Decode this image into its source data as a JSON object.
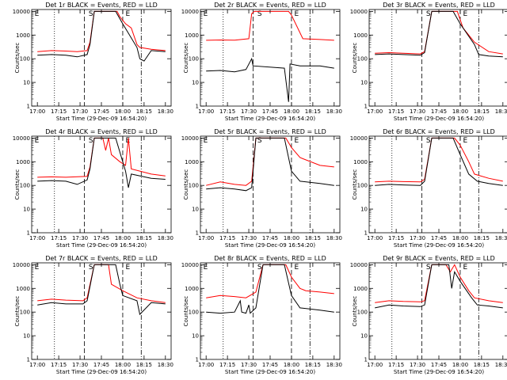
{
  "chart_data": {
    "type": "line",
    "x_tick_labels": [
      "17:00",
      "17:15",
      "17:30",
      "17:45",
      "18:00",
      "18:15",
      "18:30"
    ],
    "y_tick_labels": [
      "1",
      "10",
      "100",
      "1000",
      "10000"
    ],
    "y_scale": "log",
    "ylim": [
      1,
      12000
    ],
    "xlabel": "Start Time (29-Dec-09 16:54:20)",
    "ylabel": "Counts/sec",
    "series_colors": {
      "events": "#000000",
      "lld": "#ff0000"
    },
    "panels": [
      {
        "title": "Det 1r BLACK = Events, RED = LLD",
        "markers": [
          "E",
          "S",
          "E"
        ],
        "events": [
          [
            0,
            140
          ],
          [
            10,
            150
          ],
          [
            20,
            140
          ],
          [
            28,
            120
          ],
          [
            35,
            150
          ],
          [
            37,
            400
          ],
          [
            40,
            10000
          ],
          [
            55,
            10000
          ],
          [
            60,
            3000
          ],
          [
            70,
            300
          ],
          [
            72,
            100
          ],
          [
            75,
            80
          ],
          [
            80,
            220
          ],
          [
            90,
            200
          ]
        ],
        "lld": [
          [
            0,
            200
          ],
          [
            10,
            220
          ],
          [
            20,
            210
          ],
          [
            28,
            200
          ],
          [
            35,
            220
          ],
          [
            37,
            500
          ],
          [
            40,
            10000
          ],
          [
            56,
            10000
          ],
          [
            58,
            6000
          ],
          [
            62,
            3000
          ],
          [
            66,
            2000
          ],
          [
            70,
            400
          ],
          [
            72,
            300
          ],
          [
            80,
            250
          ],
          [
            90,
            220
          ]
        ]
      },
      {
        "title": "Det 2r BLACK = Events, RED = LLD",
        "markers": [
          "E",
          "S",
          "E"
        ],
        "events": [
          [
            0,
            30
          ],
          [
            10,
            32
          ],
          [
            20,
            28
          ],
          [
            28,
            35
          ],
          [
            32,
            100
          ],
          [
            33,
            50
          ],
          [
            55,
            40
          ],
          [
            58,
            1.5
          ],
          [
            59,
            60
          ],
          [
            66,
            50
          ],
          [
            80,
            50
          ],
          [
            90,
            40
          ]
        ],
        "lld": [
          [
            0,
            600
          ],
          [
            10,
            620
          ],
          [
            20,
            610
          ],
          [
            30,
            700
          ],
          [
            32,
            8000
          ],
          [
            34,
            10000
          ],
          [
            58,
            10000
          ],
          [
            60,
            7000
          ],
          [
            68,
            700
          ],
          [
            80,
            650
          ],
          [
            90,
            600
          ]
        ]
      },
      {
        "title": "Det 3r BLACK = Events, RED = LLD",
        "markers": [
          "",
          "S",
          "E"
        ],
        "events": [
          [
            0,
            150
          ],
          [
            10,
            160
          ],
          [
            20,
            150
          ],
          [
            32,
            140
          ],
          [
            35,
            180
          ],
          [
            40,
            10000
          ],
          [
            55,
            10000
          ],
          [
            60,
            3000
          ],
          [
            70,
            400
          ],
          [
            73,
            150
          ],
          [
            80,
            130
          ],
          [
            90,
            120
          ]
        ],
        "lld": [
          [
            0,
            170
          ],
          [
            10,
            180
          ],
          [
            20,
            170
          ],
          [
            32,
            160
          ],
          [
            35,
            200
          ],
          [
            40,
            10000
          ],
          [
            58,
            10000
          ],
          [
            62,
            2000
          ],
          [
            70,
            500
          ],
          [
            80,
            200
          ],
          [
            90,
            160
          ]
        ]
      },
      {
        "title": "Det 4r BLACK = Events, RED = LLD",
        "markers": [
          "E",
          "S",
          "E"
        ],
        "events": [
          [
            0,
            150
          ],
          [
            10,
            160
          ],
          [
            20,
            150
          ],
          [
            28,
            110
          ],
          [
            35,
            170
          ],
          [
            37,
            500
          ],
          [
            40,
            10000
          ],
          [
            55,
            10000
          ],
          [
            62,
            400
          ],
          [
            64,
            80
          ],
          [
            66,
            300
          ],
          [
            80,
            200
          ],
          [
            90,
            180
          ]
        ],
        "lld": [
          [
            0,
            220
          ],
          [
            10,
            230
          ],
          [
            20,
            220
          ],
          [
            35,
            240
          ],
          [
            37,
            600
          ],
          [
            40,
            10000
          ],
          [
            46,
            10000
          ],
          [
            48,
            3000
          ],
          [
            50,
            10000
          ],
          [
            52,
            2000
          ],
          [
            58,
            1000
          ],
          [
            62,
            700
          ],
          [
            64,
            10000
          ],
          [
            66,
            500
          ],
          [
            80,
            300
          ],
          [
            90,
            250
          ]
        ]
      },
      {
        "title": "Det 5r BLACK = Events, RED = LLD",
        "markers": [
          "E",
          "S",
          "E"
        ],
        "events": [
          [
            0,
            70
          ],
          [
            10,
            80
          ],
          [
            20,
            70
          ],
          [
            28,
            60
          ],
          [
            32,
            80
          ],
          [
            35,
            10000
          ],
          [
            55,
            10000
          ],
          [
            60,
            400
          ],
          [
            66,
            150
          ],
          [
            80,
            120
          ],
          [
            90,
            100
          ]
        ],
        "lld": [
          [
            0,
            100
          ],
          [
            10,
            140
          ],
          [
            20,
            110
          ],
          [
            28,
            100
          ],
          [
            32,
            150
          ],
          [
            35,
            10000
          ],
          [
            56,
            10000
          ],
          [
            60,
            4000
          ],
          [
            66,
            1500
          ],
          [
            80,
            700
          ],
          [
            90,
            600
          ]
        ]
      },
      {
        "title": "Det 6r BLACK = Events, RED = LLD",
        "markers": [
          "",
          "S",
          "E"
        ],
        "events": [
          [
            0,
            100
          ],
          [
            10,
            110
          ],
          [
            20,
            105
          ],
          [
            32,
            100
          ],
          [
            35,
            150
          ],
          [
            40,
            10000
          ],
          [
            55,
            10000
          ],
          [
            60,
            2000
          ],
          [
            66,
            300
          ],
          [
            72,
            150
          ],
          [
            80,
            120
          ],
          [
            90,
            100
          ]
        ],
        "lld": [
          [
            0,
            140
          ],
          [
            10,
            150
          ],
          [
            20,
            145
          ],
          [
            32,
            140
          ],
          [
            35,
            180
          ],
          [
            40,
            10000
          ],
          [
            56,
            10000
          ],
          [
            60,
            5000
          ],
          [
            66,
            1000
          ],
          [
            70,
            300
          ],
          [
            80,
            200
          ],
          [
            90,
            150
          ]
        ]
      },
      {
        "title": "Det 7r BLACK = Events, RED = LLD",
        "markers": [
          "E",
          "S",
          "E"
        ],
        "events": [
          [
            0,
            200
          ],
          [
            10,
            250
          ],
          [
            20,
            220
          ],
          [
            32,
            220
          ],
          [
            35,
            300
          ],
          [
            40,
            10000
          ],
          [
            55,
            10000
          ],
          [
            58,
            1500
          ],
          [
            60,
            500
          ],
          [
            70,
            300
          ],
          [
            72,
            80
          ],
          [
            80,
            250
          ],
          [
            90,
            220
          ]
        ],
        "lld": [
          [
            0,
            300
          ],
          [
            10,
            350
          ],
          [
            20,
            320
          ],
          [
            32,
            300
          ],
          [
            35,
            400
          ],
          [
            40,
            10000
          ],
          [
            50,
            10000
          ],
          [
            52,
            1500
          ],
          [
            60,
            800
          ],
          [
            70,
            400
          ],
          [
            80,
            300
          ],
          [
            90,
            250
          ]
        ]
      },
      {
        "title": "Det 8r BLACK = Events, RED = LLD",
        "markers": [
          "E",
          "S",
          "E"
        ],
        "events": [
          [
            0,
            100
          ],
          [
            10,
            90
          ],
          [
            20,
            100
          ],
          [
            24,
            300
          ],
          [
            25,
            100
          ],
          [
            28,
            90
          ],
          [
            30,
            200
          ],
          [
            31,
            90
          ],
          [
            35,
            150
          ],
          [
            40,
            10000
          ],
          [
            55,
            10000
          ],
          [
            60,
            500
          ],
          [
            66,
            150
          ],
          [
            80,
            120
          ],
          [
            90,
            100
          ]
        ],
        "lld": [
          [
            0,
            400
          ],
          [
            10,
            500
          ],
          [
            20,
            450
          ],
          [
            28,
            400
          ],
          [
            35,
            700
          ],
          [
            40,
            10000
          ],
          [
            56,
            10000
          ],
          [
            60,
            3000
          ],
          [
            66,
            1000
          ],
          [
            70,
            800
          ],
          [
            80,
            700
          ],
          [
            90,
            600
          ]
        ]
      },
      {
        "title": "Det 9r BLACK = Events, RED = LLD",
        "markers": [
          "",
          "S",
          "E"
        ],
        "events": [
          [
            0,
            150
          ],
          [
            10,
            200
          ],
          [
            20,
            180
          ],
          [
            32,
            170
          ],
          [
            35,
            200
          ],
          [
            40,
            10000
          ],
          [
            52,
            10000
          ],
          [
            54,
            1000
          ],
          [
            56,
            5000
          ],
          [
            60,
            2000
          ],
          [
            68,
            400
          ],
          [
            72,
            200
          ],
          [
            80,
            180
          ],
          [
            90,
            150
          ]
        ],
        "lld": [
          [
            0,
            250
          ],
          [
            10,
            300
          ],
          [
            20,
            280
          ],
          [
            32,
            270
          ],
          [
            35,
            300
          ],
          [
            40,
            10000
          ],
          [
            50,
            10000
          ],
          [
            53,
            5000
          ],
          [
            56,
            10000
          ],
          [
            60,
            3000
          ],
          [
            66,
            800
          ],
          [
            70,
            400
          ],
          [
            80,
            300
          ],
          [
            90,
            250
          ]
        ]
      }
    ]
  }
}
